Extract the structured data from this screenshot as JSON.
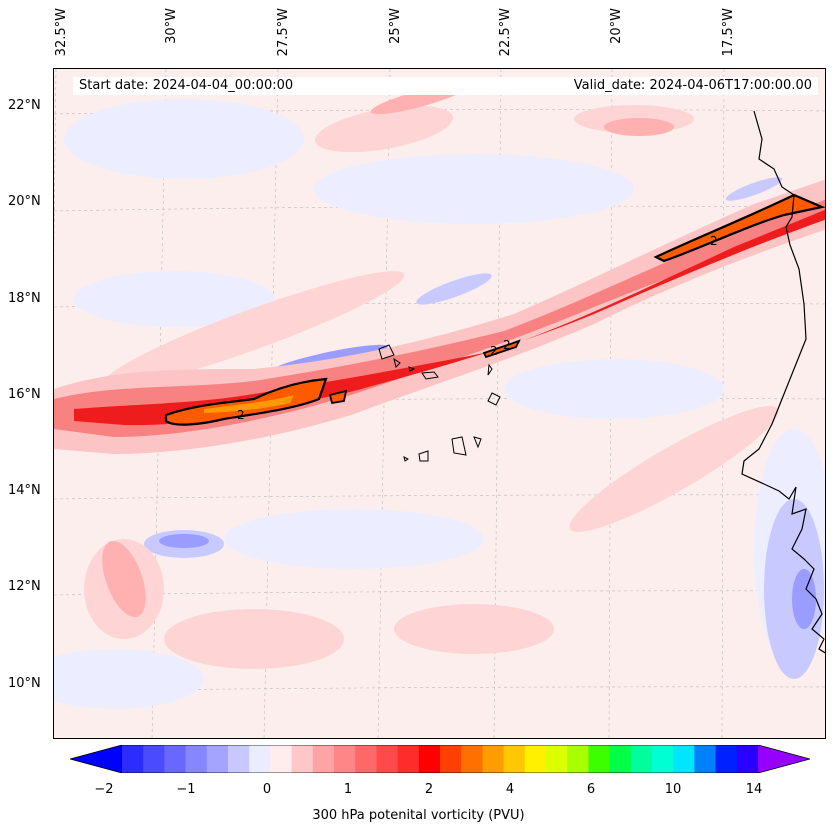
{
  "map": {
    "start_date": "Start date: 2024-04-04_00:00:00",
    "valid_date": "Valid_date: 2024-04-06T17:00:00.00",
    "lon_labels": [
      "32.5°W",
      "30°W",
      "27.5°W",
      "25°W",
      "22.5°W",
      "20°W",
      "17.5°W"
    ],
    "lat_labels": [
      "22°N",
      "20°N",
      "18°N",
      "16°N",
      "14°N",
      "12°N",
      "10°N"
    ],
    "contour_labels": [
      "2",
      "2",
      "2",
      "2"
    ],
    "colors": {
      "background": "#fdeeee",
      "band_light": "#fcc8c8",
      "band_mid": "#f88080",
      "band_core": "#ee1c1c",
      "pv2_fill": "#ff5a00",
      "pv2_inner": "#ff9900",
      "negative_light": "#eef0ff",
      "negative_mid": "#9a9cff",
      "coastline": "#000000"
    }
  },
  "colorbar": {
    "label": "300 hPa potenital vorticity (PVU)",
    "tick_labels": [
      "−2",
      "−1",
      "0",
      "1",
      "2",
      "4",
      "6",
      "10",
      "14"
    ],
    "colors": [
      "#0000ff",
      "#2c2cff",
      "#4a4aff",
      "#6868ff",
      "#8686ff",
      "#a4a4ff",
      "#c8c8ff",
      "#ececff",
      "#ffecec",
      "#ffc8c8",
      "#ffa4a4",
      "#ff8686",
      "#ff6868",
      "#ff4a4a",
      "#ff2c2c",
      "#ff0000",
      "#ff4000",
      "#ff7000",
      "#ff9c00",
      "#ffc800",
      "#fff000",
      "#dcff00",
      "#a8ff00",
      "#3cff00",
      "#00ff46",
      "#00ff9c",
      "#00ffd2",
      "#00e6ff",
      "#0080ff",
      "#0020ff",
      "#2a00ff",
      "#9600ff"
    ]
  }
}
